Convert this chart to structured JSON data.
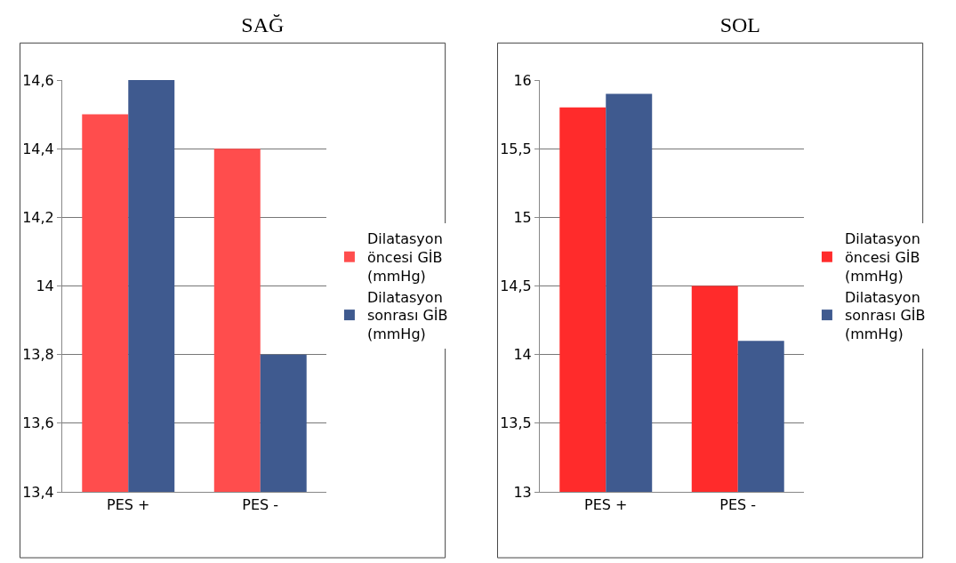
{
  "chart_data": [
    {
      "type": "bar",
      "title": "SAĞ",
      "categories": [
        "PES +",
        "PES -"
      ],
      "series": [
        {
          "name": "Dilatasyon öncesi GİB (mmHg)",
          "color": "#ff4d4d",
          "values": [
            14.5,
            14.4
          ]
        },
        {
          "name": "Dilatasyon sonrası GİB (mmHg)",
          "color": "#3f5a8f",
          "values": [
            14.6,
            13.8
          ]
        }
      ],
      "ylim": [
        13.4,
        14.6
      ],
      "yticks": [
        {
          "value": 13.4,
          "label": "13,4"
        },
        {
          "value": 13.6,
          "label": "13,6"
        },
        {
          "value": 13.8,
          "label": "13,8"
        },
        14,
        {
          "value": 14.2,
          "label": "14,2"
        },
        {
          "value": 14.4,
          "label": "14,4"
        },
        {
          "value": 14.6,
          "label": "14,6"
        }
      ],
      "grid": "y",
      "legend": "right"
    },
    {
      "type": "bar",
      "title": "SOL",
      "categories": [
        "PES +",
        "PES -"
      ],
      "series": [
        {
          "name": "Dilatasyon öncesi GİB (mmHg)",
          "color": "#ff2b2b",
          "values": [
            15.8,
            14.5
          ]
        },
        {
          "name": "Dilatasyon sonrası GİB (mmHg)",
          "color": "#3f5a8f",
          "values": [
            15.9,
            14.1
          ]
        }
      ],
      "ylim": [
        13,
        16
      ],
      "yticks": [
        13,
        {
          "value": 13.5,
          "label": "13,5"
        },
        14,
        {
          "value": 14.5,
          "label": "14,5"
        },
        15,
        {
          "value": 15.5,
          "label": "15,5"
        },
        16
      ],
      "grid": "y",
      "legend": "right"
    }
  ]
}
